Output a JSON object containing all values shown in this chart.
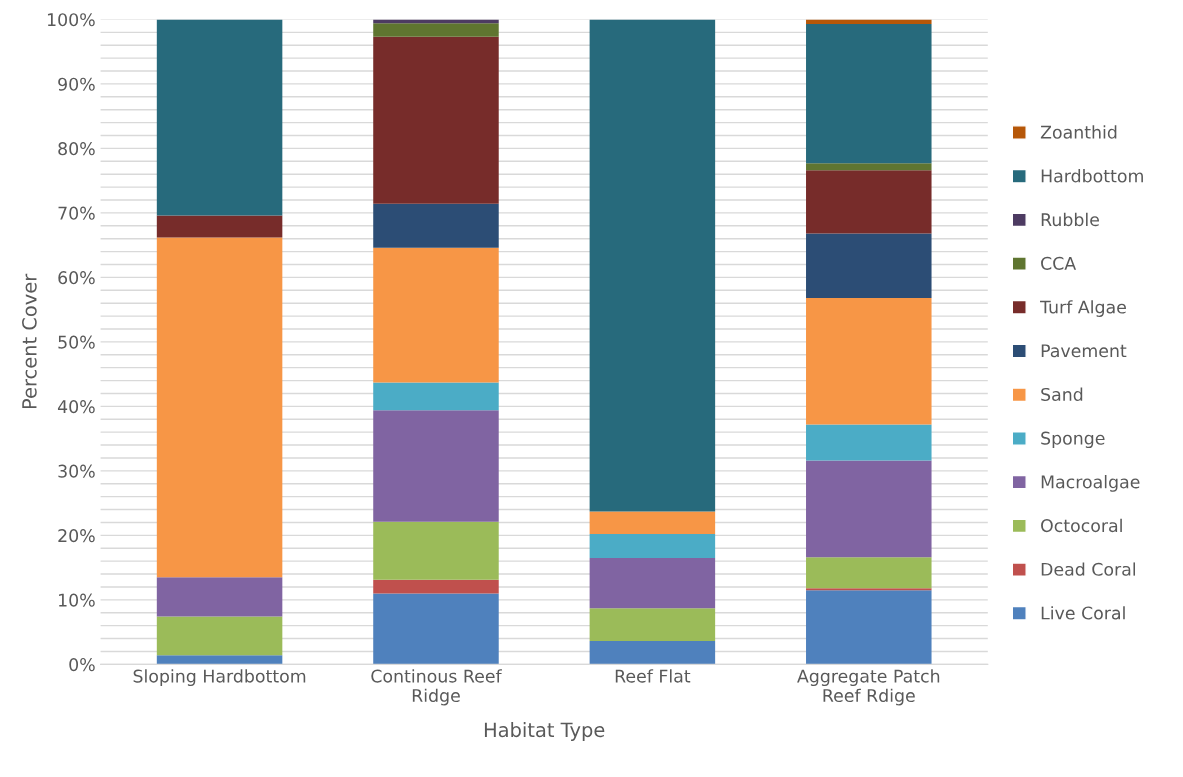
{
  "chart_data": {
    "type": "bar",
    "stacked": true,
    "xlabel": "Habitat Type",
    "ylabel": "Percent Cover",
    "categories": [
      "Sloping Hardbottom",
      "Continous Reef\nRidge",
      "Reef Flat",
      "Aggregate Patch\nReef Rdige"
    ],
    "series": [
      {
        "name": "Live Coral",
        "color": "#4f81bd",
        "values": [
          1.4,
          11.0,
          3.6,
          11.5
        ]
      },
      {
        "name": "Dead Coral",
        "color": "#c0504d",
        "values": [
          null,
          2.1,
          null,
          0.3
        ]
      },
      {
        "name": "Octocoral",
        "color": "#9bbb59",
        "values": [
          6.0,
          9.0,
          5.1,
          4.8
        ]
      },
      {
        "name": "Macroalgae",
        "color": "#8064a2",
        "values": [
          6.1,
          17.3,
          7.8,
          15.0
        ]
      },
      {
        "name": "Sponge",
        "color": "#4bacc6",
        "values": [
          null,
          4.3,
          3.7,
          5.6
        ]
      },
      {
        "name": "Sand",
        "color": "#f79646",
        "values": [
          52.7,
          20.9,
          3.5,
          19.6
        ]
      },
      {
        "name": "Pavement",
        "color": "#2c4d75",
        "values": [
          null,
          6.8,
          null,
          10.0
        ]
      },
      {
        "name": "Turf Algae",
        "color": "#772c2a",
        "values": [
          3.4,
          25.9,
          null,
          9.8
        ]
      },
      {
        "name": "CCA",
        "color": "#5f7530",
        "values": [
          null,
          2.1,
          null,
          1.1
        ]
      },
      {
        "name": "Rubble",
        "color": "#4d3b62",
        "values": [
          null,
          0.6,
          null,
          null
        ]
      },
      {
        "name": "Hardbottom",
        "color": "#276a7c",
        "values": [
          30.4,
          null,
          76.3,
          21.6
        ]
      },
      {
        "name": "Zoanthid",
        "color": "#b65708",
        "values": [
          null,
          null,
          null,
          0.7
        ]
      }
    ],
    "ylim": [
      0,
      100
    ],
    "yticks": [
      {
        "value": 0,
        "label": "0%"
      },
      {
        "value": 2,
        "label": null
      },
      {
        "value": 4,
        "label": null
      },
      {
        "value": 6,
        "label": null
      },
      {
        "value": 8,
        "label": null
      },
      {
        "value": 10,
        "label": "10%"
      },
      {
        "value": 12,
        "label": null
      },
      {
        "value": 14,
        "label": null
      },
      {
        "value": 16,
        "label": null
      },
      {
        "value": 18,
        "label": null
      },
      {
        "value": 20,
        "label": "20%"
      },
      {
        "value": 22,
        "label": null
      },
      {
        "value": 24,
        "label": null
      },
      {
        "value": 26,
        "label": null
      },
      {
        "value": 28,
        "label": null
      },
      {
        "value": 30,
        "label": "30%"
      },
      {
        "value": 32,
        "label": null
      },
      {
        "value": 34,
        "label": null
      },
      {
        "value": 36,
        "label": null
      },
      {
        "value": 38,
        "label": null
      },
      {
        "value": 40,
        "label": "40%"
      },
      {
        "value": 42,
        "label": null
      },
      {
        "value": 44,
        "label": null
      },
      {
        "value": 46,
        "label": null
      },
      {
        "value": 48,
        "label": null
      },
      {
        "value": 50,
        "label": "50%"
      },
      {
        "value": 52,
        "label": null
      },
      {
        "value": 54,
        "label": null
      },
      {
        "value": 56,
        "label": null
      },
      {
        "value": 58,
        "label": null
      },
      {
        "value": 60,
        "label": "60%"
      },
      {
        "value": 62,
        "label": null
      },
      {
        "value": 64,
        "label": null
      },
      {
        "value": 66,
        "label": null
      },
      {
        "value": 68,
        "label": null
      },
      {
        "value": 70,
        "label": "70%"
      },
      {
        "value": 72,
        "label": null
      },
      {
        "value": 74,
        "label": null
      },
      {
        "value": 76,
        "label": null
      },
      {
        "value": 78,
        "label": null
      },
      {
        "value": 80,
        "label": "80%"
      },
      {
        "value": 82,
        "label": null
      },
      {
        "value": 84,
        "label": null
      },
      {
        "value": 86,
        "label": null
      },
      {
        "value": 88,
        "label": null
      },
      {
        "value": 90,
        "label": "90%"
      },
      {
        "value": 92,
        "label": null
      },
      {
        "value": 94,
        "label": null
      },
      {
        "value": 96,
        "label": null
      },
      {
        "value": 98,
        "label": null
      },
      {
        "value": 100,
        "label": "100%"
      }
    ],
    "grid": "y",
    "legend": "right"
  }
}
